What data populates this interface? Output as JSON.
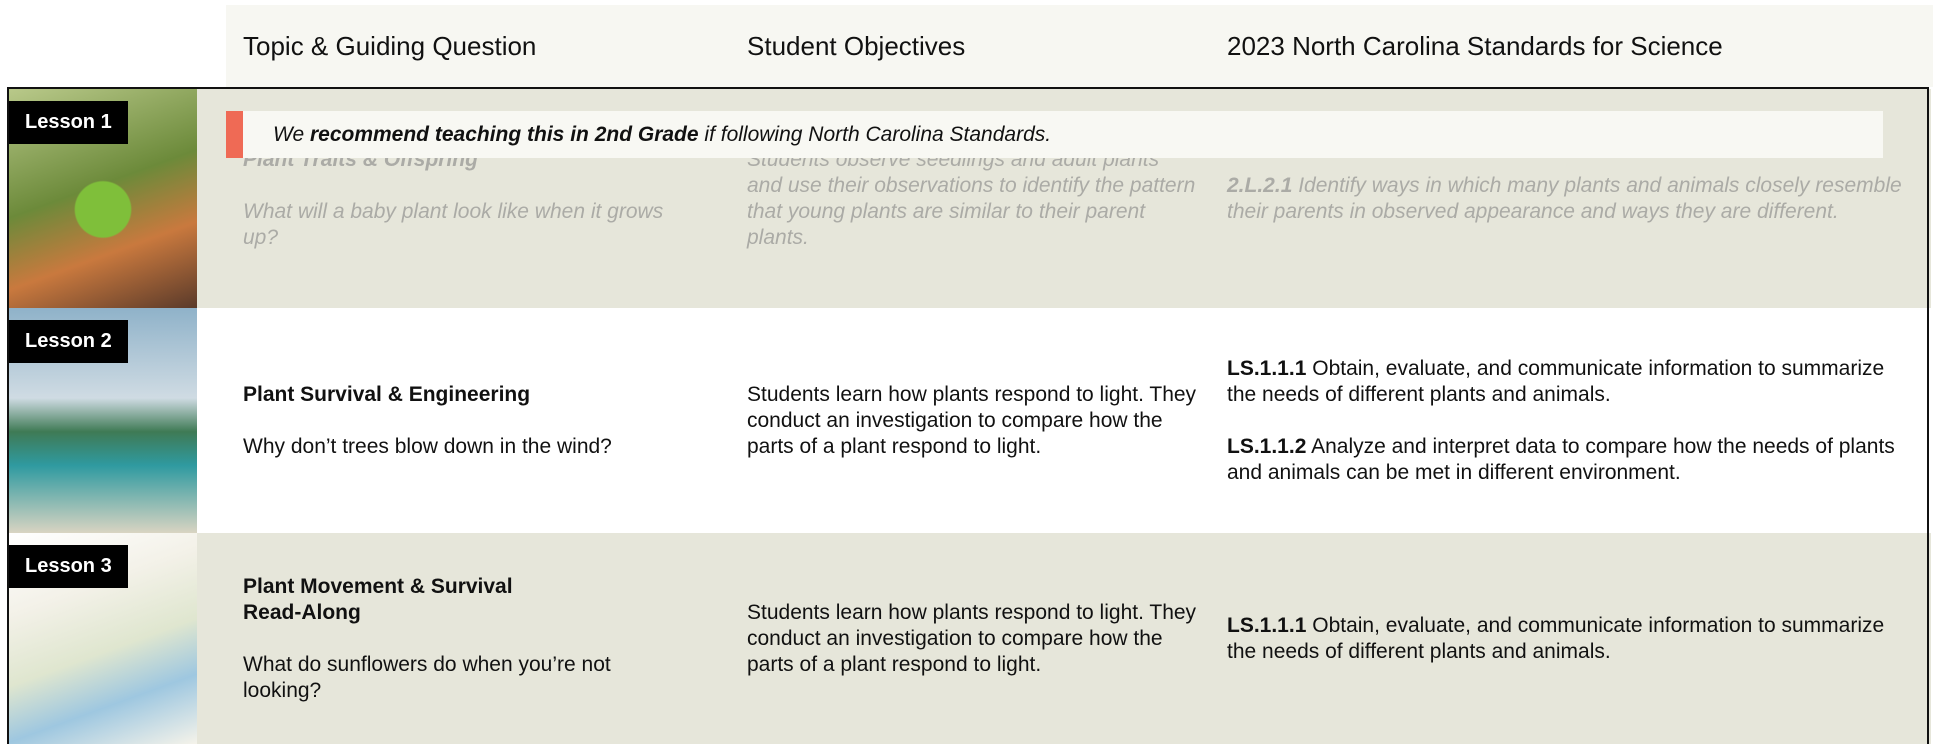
{
  "header": {
    "columns": [
      "Topic & Guiding Question",
      "Student Objectives",
      "2023 North Carolina Standards for Science"
    ]
  },
  "banner": {
    "lead": "We",
    "emphasis": "recommend teaching this in 2nd Grade",
    "tail": "if following North Carolina Standards."
  },
  "lessons": [
    {
      "label": "Lesson 1",
      "topic": "Plant Traits & Offspring",
      "question": "What will a baby plant look like when it grows up?",
      "objectives": "Students observe seedlings and adult plants and use their observations to identify the pattern that young plants are similar to their parent plants.",
      "standards": [
        {
          "code": "2.L.2.1",
          "text": "Identify ways in which many plants and animals closely resemble their parents in observed appearance and ways they are different."
        }
      ]
    },
    {
      "label": "Lesson 2",
      "topic": "Plant Survival & Engineering",
      "question": "Why don’t trees blow down in the wind?",
      "objectives": "Students learn how plants respond to light. They conduct an investigation to compare how the parts of a plant respond to light.",
      "standards": [
        {
          "code": "LS.1.1.1",
          "text": "Obtain, evaluate, and communicate information to summarize the needs of different plants and animals."
        },
        {
          "code": "LS.1.1.2",
          "text": "Analyze and interpret data to compare how the needs of plants and animals can be met in different environment."
        }
      ]
    },
    {
      "label": "Lesson 3",
      "topic": "Plant Movement & Survival Read-Along",
      "question": "What do sunflowers do when you’re not looking?",
      "objectives": "Students learn how plants respond to light. They conduct an investigation to compare how the parts of a plant respond to light.",
      "standards": [
        {
          "code": "LS.1.1.1",
          "text": "Obtain, evaluate, and communicate information to summarize the needs of different plants and animals."
        }
      ]
    }
  ]
}
